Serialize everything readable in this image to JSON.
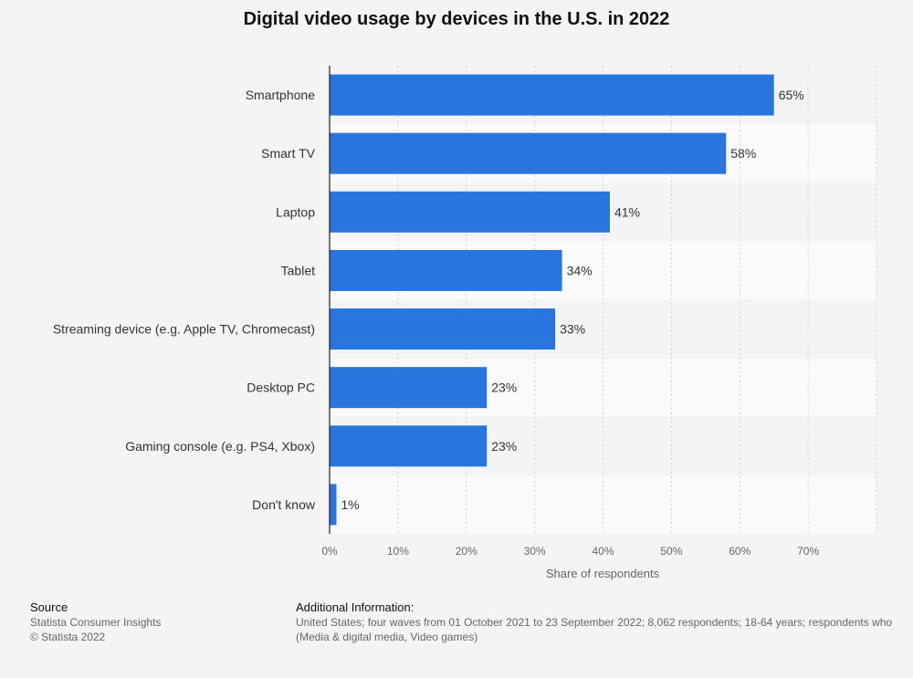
{
  "chart_data": {
    "type": "bar",
    "orientation": "horizontal",
    "title": "Digital video usage by devices in the U.S. in 2022",
    "xlabel": "Share of respondents",
    "ylabel": "",
    "categories": [
      "Smartphone",
      "Smart TV",
      "Laptop",
      "Tablet",
      "Streaming device (e.g. Apple TV, Chromecast)",
      "Desktop PC",
      "Gaming console (e.g. PS4, Xbox)",
      "Don't know"
    ],
    "values": [
      65,
      58,
      41,
      34,
      33,
      23,
      23,
      1
    ],
    "value_labels": [
      "65%",
      "58%",
      "41%",
      "34%",
      "33%",
      "23%",
      "23%",
      "1%"
    ],
    "xlim": [
      0,
      80
    ],
    "x_ticks": [
      0,
      10,
      20,
      30,
      40,
      50,
      60,
      70
    ],
    "x_tick_labels": [
      "0%",
      "10%",
      "20%",
      "30%",
      "40%",
      "50%",
      "60%",
      "70%"
    ],
    "grid": true,
    "bar_color": "#2876dd"
  },
  "footer": {
    "source_heading": "Source",
    "source_lines": [
      "Statista Consumer Insights",
      "© Statista 2022"
    ],
    "info_heading": "Additional Information:",
    "info_lines": [
      "United States; four waves from 01 October 2021 to 23 September 2022; 8,062 respondents; 18-64 years; respondents who",
      "(Media & digital media, Video games)"
    ]
  }
}
